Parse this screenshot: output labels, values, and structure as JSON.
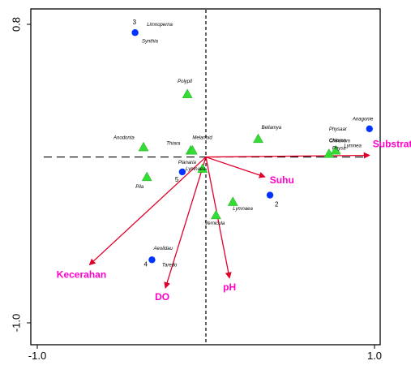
{
  "chart_data": {
    "type": "scatter",
    "title": "",
    "xlabel": "",
    "ylabel": "",
    "xlim": [
      -1.0,
      1.0
    ],
    "ylim": [
      -1.0,
      0.8
    ],
    "x_ticks": [
      "-1.0",
      "1.0"
    ],
    "y_ticks": [
      "0.8",
      "-1.0"
    ],
    "colors": {
      "taxa": "#33dd33",
      "sites": "#0033ff",
      "env_arrows": "#e0002a",
      "env_labels": "#ff00cc",
      "axes": "#000000"
    },
    "env_variables": [
      {
        "name": "Substrat",
        "x": 0.97,
        "y": 0.01
      },
      {
        "name": "Suhu",
        "x": 0.35,
        "y": -0.12
      },
      {
        "name": "pH",
        "x": 0.14,
        "y": -0.73
      },
      {
        "name": "DO",
        "x": -0.24,
        "y": -0.79
      },
      {
        "name": "Kecerahan",
        "x": -0.69,
        "y": -0.65
      }
    ],
    "sites": [
      {
        "label": "3",
        "x": -0.42,
        "y": 0.75
      },
      {
        "label": "5",
        "x": -0.14,
        "y": -0.09
      },
      {
        "label": "2",
        "x": 0.38,
        "y": -0.23
      },
      {
        "label": "4",
        "x": -0.32,
        "y": -0.62
      },
      {
        "label": "",
        "x": 0.97,
        "y": 0.17
      }
    ],
    "taxa": [
      {
        "name": "Polypll",
        "x": -0.11,
        "y": 0.38
      },
      {
        "name": "Anodonta",
        "x": -0.37,
        "y": 0.06
      },
      {
        "name": "Thiara",
        "x": -0.09,
        "y": 0.04
      },
      {
        "name": "Melanoid",
        "x": -0.08,
        "y": 0.04
      },
      {
        "name": "Bellamya",
        "x": 0.31,
        "y": 0.11
      },
      {
        "name": "Pila",
        "x": -0.35,
        "y": -0.12
      },
      {
        "name": "Planaria",
        "x": -0.02,
        "y": -0.07
      },
      {
        "name": "Lymnaea",
        "x": 0.16,
        "y": -0.27
      },
      {
        "name": "Vernicula",
        "x": 0.06,
        "y": -0.35
      },
      {
        "name": "Chironom",
        "x": 0.77,
        "y": 0.04
      },
      {
        "name": "Physa",
        "x": 0.73,
        "y": 0.02
      }
    ],
    "annotations": [
      {
        "text": "Limnoperna",
        "x": -0.35,
        "y": 0.79
      },
      {
        "text": "Synthia",
        "x": -0.38,
        "y": 0.69
      },
      {
        "text": "Lymnaea",
        "x": -0.12,
        "y": -0.08
      },
      {
        "text": "Aeolidau",
        "x": -0.31,
        "y": -0.56
      },
      {
        "text": "Taredo",
        "x": -0.26,
        "y": -0.66
      },
      {
        "text": "Anagonie",
        "x": 0.87,
        "y": 0.22
      },
      {
        "text": "Physaar",
        "x": 0.73,
        "y": 0.16
      },
      {
        "text": "Chloron",
        "x": 0.73,
        "y": 0.09
      },
      {
        "text": "Lymnea",
        "x": 0.82,
        "y": 0.06
      }
    ]
  }
}
